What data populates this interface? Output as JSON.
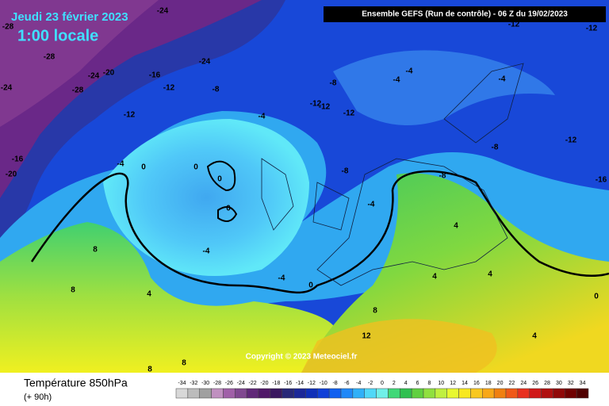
{
  "title": "Jeudi 23 février 2023",
  "subtitle": "1:00 locale",
  "header": "Ensemble GEFS  (Run de contrôle)  -  06 Z du 19/02/2023",
  "copyright": "Copyright © 2023 Meteociel.fr",
  "footer": {
    "title": "Température 850hPa",
    "lead": "(+ 90h)"
  },
  "scale": {
    "values": [
      -34,
      -32,
      -30,
      -28,
      -26,
      -24,
      -22,
      -20,
      -18,
      -16,
      -14,
      -12,
      -10,
      -8,
      -6,
      -4,
      -2,
      0,
      2,
      4,
      6,
      8,
      10,
      12,
      14,
      16,
      18,
      20,
      22,
      24,
      26,
      28,
      30,
      32,
      34
    ],
    "colors": [
      "#d8d8d8",
      "#bcbcbc",
      "#a0a0a0",
      "#c090c0",
      "#a060a8",
      "#804890",
      "#602878",
      "#501868",
      "#3a1860",
      "#282878",
      "#1c2898",
      "#1030b8",
      "#1040d8",
      "#1060f0",
      "#2088f8",
      "#30b0f8",
      "#50d8f8",
      "#70f0e8",
      "#40d878",
      "#30c050",
      "#60d040",
      "#90e040",
      "#c0f040",
      "#e8f830",
      "#f8e820",
      "#f8c820",
      "#f8a818",
      "#f08010",
      "#f05818",
      "#e83020",
      "#d01818",
      "#b01010",
      "#900808",
      "#700000",
      "#500000"
    ]
  },
  "contour_labels": [
    -24,
    -28,
    -28,
    -24,
    -20,
    -16,
    -12,
    -8,
    -12,
    -4,
    0,
    0,
    0,
    0,
    -4,
    -16,
    -20,
    -24,
    -28,
    -8,
    -12,
    -12,
    -12,
    -4,
    -4,
    -4,
    -8,
    -12,
    -16,
    -8,
    -4,
    -4,
    -4,
    0,
    4,
    8,
    8,
    4,
    4,
    4,
    8,
    12,
    4,
    8,
    8,
    0,
    -12,
    -12,
    -24,
    -8
  ]
}
